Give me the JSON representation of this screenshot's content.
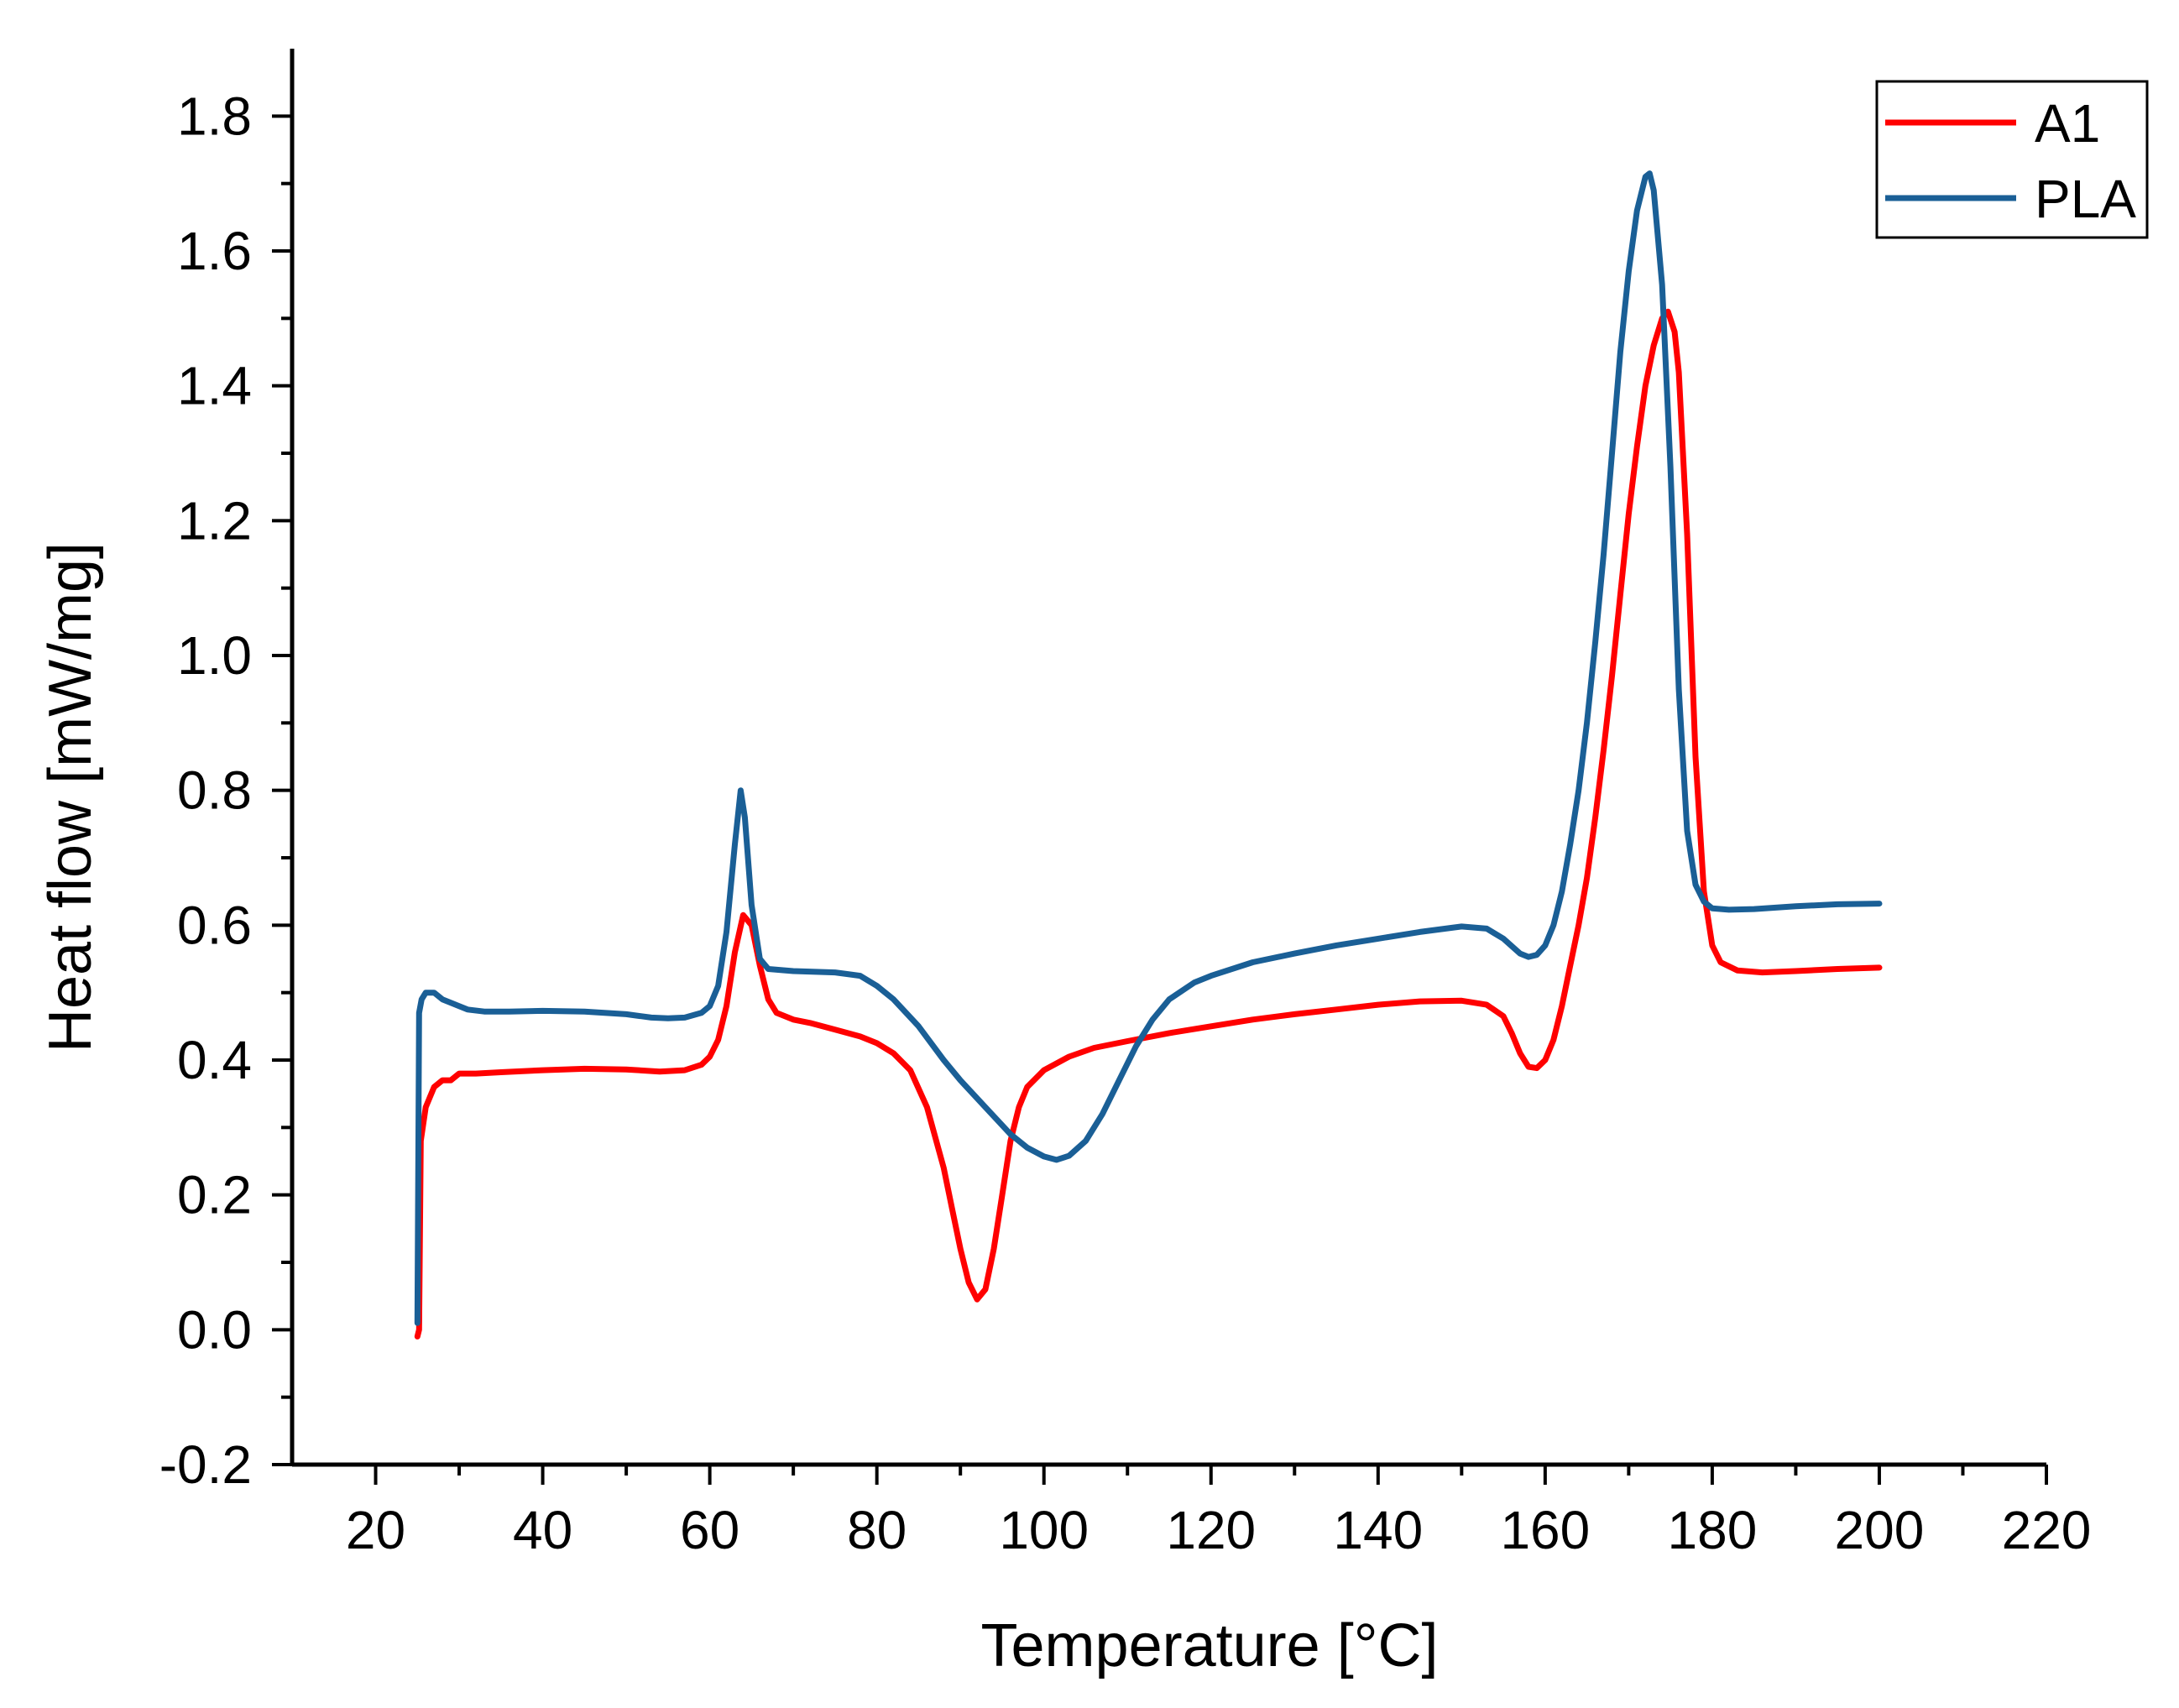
{
  "chart_data": {
    "type": "line",
    "title": "",
    "xlabel": "Temperature [°C]",
    "ylabel": "Heat flow [mW/mg]",
    "xlim": [
      10,
      220
    ],
    "ylim": [
      -0.2,
      1.9
    ],
    "x_ticks": [
      20,
      40,
      60,
      80,
      100,
      120,
      140,
      160,
      180,
      200,
      220
    ],
    "y_ticks": [
      -0.2,
      0.0,
      0.2,
      0.4,
      0.6,
      0.8,
      1.0,
      1.2,
      1.4,
      1.6,
      1.8
    ],
    "x_tick_labels": [
      "20",
      "40",
      "60",
      "80",
      "100",
      "120",
      "140",
      "160",
      "180",
      "200",
      "220"
    ],
    "y_tick_labels": [
      "-0.2",
      "0.0",
      "0.2",
      "0.4",
      "0.6",
      "0.8",
      "1.0",
      "1.2",
      "1.4",
      "1.6",
      "1.8"
    ],
    "grid": false,
    "legend_position": "top-right",
    "series": [
      {
        "name": "A1",
        "color": "#ff0000",
        "points": [
          [
            25,
            -0.01
          ],
          [
            25.2,
            0.0
          ],
          [
            25.4,
            0.28
          ],
          [
            26,
            0.33
          ],
          [
            27,
            0.36
          ],
          [
            28,
            0.37
          ],
          [
            29,
            0.37
          ],
          [
            30,
            0.38
          ],
          [
            32,
            0.38
          ],
          [
            35,
            0.382
          ],
          [
            40,
            0.385
          ],
          [
            45,
            0.387
          ],
          [
            50,
            0.386
          ],
          [
            54,
            0.383
          ],
          [
            57,
            0.385
          ],
          [
            59,
            0.393
          ],
          [
            60,
            0.405
          ],
          [
            61,
            0.43
          ],
          [
            62,
            0.48
          ],
          [
            63,
            0.56
          ],
          [
            64,
            0.615
          ],
          [
            65,
            0.6
          ],
          [
            66,
            0.54
          ],
          [
            67,
            0.49
          ],
          [
            68,
            0.47
          ],
          [
            70,
            0.46
          ],
          [
            72,
            0.455
          ],
          [
            75,
            0.445
          ],
          [
            78,
            0.435
          ],
          [
            80,
            0.425
          ],
          [
            82,
            0.41
          ],
          [
            84,
            0.385
          ],
          [
            86,
            0.33
          ],
          [
            88,
            0.24
          ],
          [
            89,
            0.18
          ],
          [
            90,
            0.12
          ],
          [
            91,
            0.07
          ],
          [
            92,
            0.045
          ],
          [
            93,
            0.06
          ],
          [
            94,
            0.12
          ],
          [
            95,
            0.2
          ],
          [
            96,
            0.28
          ],
          [
            97,
            0.33
          ],
          [
            98,
            0.36
          ],
          [
            100,
            0.385
          ],
          [
            103,
            0.405
          ],
          [
            106,
            0.418
          ],
          [
            110,
            0.428
          ],
          [
            115,
            0.44
          ],
          [
            120,
            0.45
          ],
          [
            125,
            0.46
          ],
          [
            130,
            0.468
          ],
          [
            135,
            0.475
          ],
          [
            140,
            0.482
          ],
          [
            145,
            0.487
          ],
          [
            150,
            0.488
          ],
          [
            153,
            0.482
          ],
          [
            155,
            0.465
          ],
          [
            156,
            0.44
          ],
          [
            157,
            0.41
          ],
          [
            158,
            0.39
          ],
          [
            159,
            0.388
          ],
          [
            160,
            0.4
          ],
          [
            161,
            0.43
          ],
          [
            162,
            0.48
          ],
          [
            163,
            0.54
          ],
          [
            164,
            0.6
          ],
          [
            165,
            0.67
          ],
          [
            166,
            0.76
          ],
          [
            167,
            0.86
          ],
          [
            168,
            0.97
          ],
          [
            169,
            1.09
          ],
          [
            170,
            1.21
          ],
          [
            171,
            1.31
          ],
          [
            172,
            1.4
          ],
          [
            173,
            1.46
          ],
          [
            174,
            1.5
          ],
          [
            174.7,
            1.51
          ],
          [
            175.5,
            1.48
          ],
          [
            176,
            1.42
          ],
          [
            177,
            1.18
          ],
          [
            178,
            0.85
          ],
          [
            179,
            0.65
          ],
          [
            180,
            0.57
          ],
          [
            181,
            0.545
          ],
          [
            183,
            0.533
          ],
          [
            186,
            0.53
          ],
          [
            190,
            0.532
          ],
          [
            195,
            0.535
          ],
          [
            200,
            0.537
          ]
        ]
      },
      {
        "name": "PLA",
        "color": "#1a5f96",
        "points": [
          [
            25,
            0.01
          ],
          [
            25.2,
            0.47
          ],
          [
            25.5,
            0.49
          ],
          [
            26,
            0.5
          ],
          [
            27,
            0.5
          ],
          [
            28,
            0.49
          ],
          [
            29,
            0.485
          ],
          [
            30,
            0.48
          ],
          [
            31,
            0.475
          ],
          [
            33,
            0.472
          ],
          [
            36,
            0.472
          ],
          [
            40,
            0.473
          ],
          [
            45,
            0.472
          ],
          [
            50,
            0.468
          ],
          [
            53,
            0.463
          ],
          [
            55,
            0.462
          ],
          [
            57,
            0.463
          ],
          [
            59,
            0.47
          ],
          [
            60,
            0.48
          ],
          [
            61,
            0.51
          ],
          [
            62,
            0.59
          ],
          [
            63,
            0.72
          ],
          [
            63.7,
            0.8
          ],
          [
            64.2,
            0.76
          ],
          [
            65,
            0.63
          ],
          [
            66,
            0.55
          ],
          [
            67,
            0.535
          ],
          [
            70,
            0.532
          ],
          [
            75,
            0.53
          ],
          [
            78,
            0.525
          ],
          [
            80,
            0.51
          ],
          [
            82,
            0.49
          ],
          [
            85,
            0.45
          ],
          [
            88,
            0.4
          ],
          [
            90,
            0.37
          ],
          [
            93,
            0.33
          ],
          [
            96,
            0.29
          ],
          [
            98,
            0.27
          ],
          [
            100,
            0.257
          ],
          [
            101.5,
            0.252
          ],
          [
            103,
            0.258
          ],
          [
            105,
            0.28
          ],
          [
            107,
            0.32
          ],
          [
            109,
            0.37
          ],
          [
            111,
            0.42
          ],
          [
            113,
            0.46
          ],
          [
            115,
            0.49
          ],
          [
            118,
            0.515
          ],
          [
            120,
            0.525
          ],
          [
            125,
            0.545
          ],
          [
            130,
            0.558
          ],
          [
            135,
            0.57
          ],
          [
            140,
            0.58
          ],
          [
            145,
            0.59
          ],
          [
            150,
            0.598
          ],
          [
            153,
            0.595
          ],
          [
            155,
            0.58
          ],
          [
            157,
            0.558
          ],
          [
            158,
            0.553
          ],
          [
            159,
            0.556
          ],
          [
            160,
            0.57
          ],
          [
            161,
            0.6
          ],
          [
            162,
            0.65
          ],
          [
            163,
            0.72
          ],
          [
            164,
            0.8
          ],
          [
            165,
            0.9
          ],
          [
            166,
            1.02
          ],
          [
            167,
            1.15
          ],
          [
            168,
            1.3
          ],
          [
            169,
            1.45
          ],
          [
            170,
            1.57
          ],
          [
            171,
            1.66
          ],
          [
            172,
            1.71
          ],
          [
            172.5,
            1.715
          ],
          [
            173,
            1.69
          ],
          [
            174,
            1.55
          ],
          [
            175,
            1.28
          ],
          [
            176,
            0.95
          ],
          [
            177,
            0.74
          ],
          [
            178,
            0.66
          ],
          [
            179,
            0.635
          ],
          [
            180,
            0.625
          ],
          [
            182,
            0.623
          ],
          [
            185,
            0.624
          ],
          [
            190,
            0.628
          ],
          [
            195,
            0.631
          ],
          [
            200,
            0.632
          ]
        ]
      }
    ]
  }
}
